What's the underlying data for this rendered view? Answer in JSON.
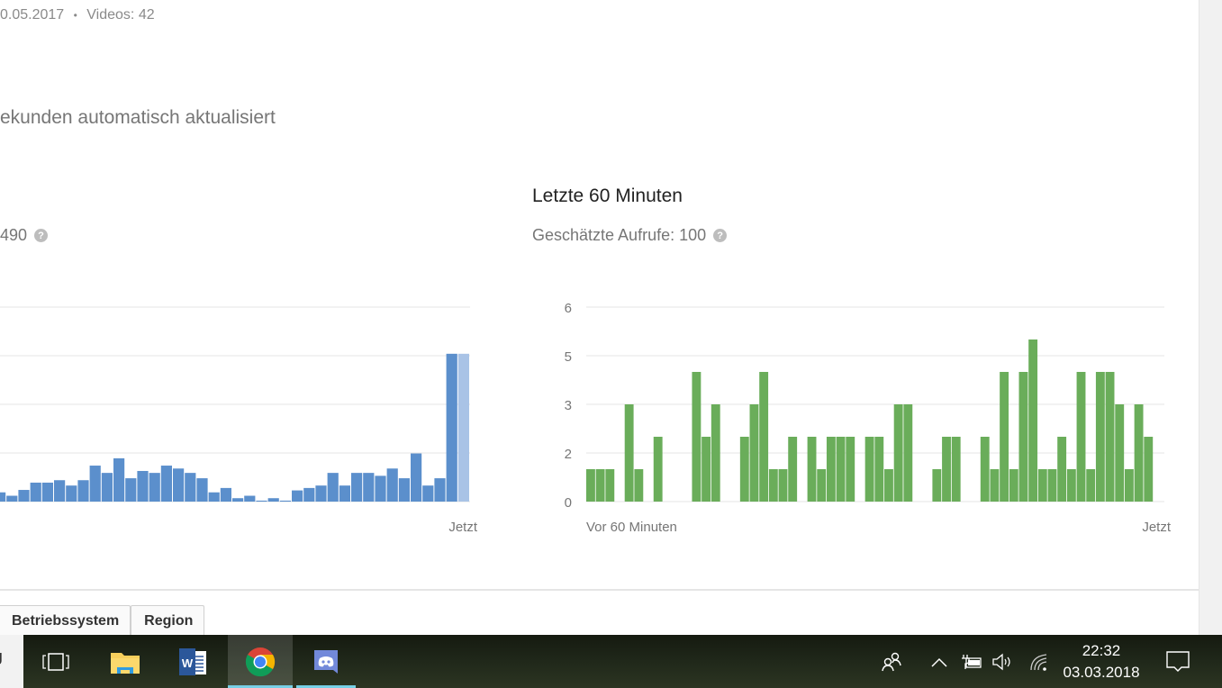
{
  "header": {
    "meta_date": "0.05.2017",
    "meta_sep": "•",
    "meta_videos": "Videos: 42",
    "refresh_note": "ekunden automatisch aktualisiert"
  },
  "left_panel": {
    "subtitle": "490",
    "help_icon": "question-circle-icon",
    "x_end_label": "Jetzt"
  },
  "right_panel": {
    "title": "Letzte 60 Minuten",
    "subtitle": "Geschätzte Aufrufe: 100",
    "help_icon": "question-circle-icon"
  },
  "chart_data": [
    {
      "type": "bar",
      "title": "",
      "xlabel": "",
      "ylabel": "",
      "x_tick_labels": [
        "Jetzt"
      ],
      "color": "#5b8fcc",
      "current_bar_color": "#a9c3e6",
      "grid": true,
      "ylim": [
        0,
        4
      ],
      "values": [
        0.19,
        0.12,
        0.24,
        0.39,
        0.39,
        0.44,
        0.33,
        0.44,
        0.74,
        0.59,
        0.89,
        0.48,
        0.63,
        0.59,
        0.74,
        0.68,
        0.59,
        0.48,
        0.19,
        0.28,
        0.07,
        0.12,
        0.02,
        0.07,
        0.02,
        0.23,
        0.28,
        0.33,
        0.59,
        0.33,
        0.59,
        0.59,
        0.53,
        0.68,
        0.48,
        0.99,
        0.33,
        0.48,
        3.04,
        3.04
      ]
    },
    {
      "type": "bar",
      "title": "Letzte 60 Minuten",
      "xlabel": "",
      "ylabel": "",
      "x_tick_labels": [
        "Vor 60 Minuten",
        "Jetzt"
      ],
      "y_ticks": [
        0,
        1.5,
        3,
        4.5,
        6
      ],
      "y_tick_labels": [
        "0",
        "2",
        "3",
        "5",
        "6"
      ],
      "ylim": [
        0,
        6
      ],
      "grid": true,
      "color": "#6aad5a",
      "values": [
        1,
        1,
        1,
        0,
        3,
        1,
        0,
        2,
        0,
        0,
        0,
        4,
        2,
        3,
        0,
        0,
        2,
        3,
        4,
        1,
        1,
        2,
        0,
        2,
        1,
        2,
        2,
        2,
        0,
        2,
        2,
        1,
        3,
        3,
        0,
        0,
        1,
        2,
        2,
        0,
        0,
        2,
        1,
        4,
        1,
        4,
        5,
        1,
        1,
        2,
        1,
        4,
        1,
        4,
        4,
        3,
        1,
        3,
        2
      ]
    }
  ],
  "tabs": [
    {
      "label": "Betriebssystem"
    },
    {
      "label": "Region"
    }
  ],
  "taskbar": {
    "search_stub": "J",
    "apps": [
      {
        "name": "task-view",
        "icon": "task-view-icon"
      },
      {
        "name": "file-explorer",
        "icon": "folder-icon"
      },
      {
        "name": "word",
        "icon": "word-icon"
      },
      {
        "name": "chrome",
        "icon": "chrome-icon",
        "active": true
      },
      {
        "name": "discord",
        "icon": "discord-icon",
        "open": true
      }
    ],
    "tray_icons": [
      "people-icon",
      "chevron-up-icon",
      "battery-icon",
      "volume-icon",
      "wifi-icon",
      "action-center-icon"
    ],
    "time": "22:32",
    "date": "03.03.2018"
  }
}
